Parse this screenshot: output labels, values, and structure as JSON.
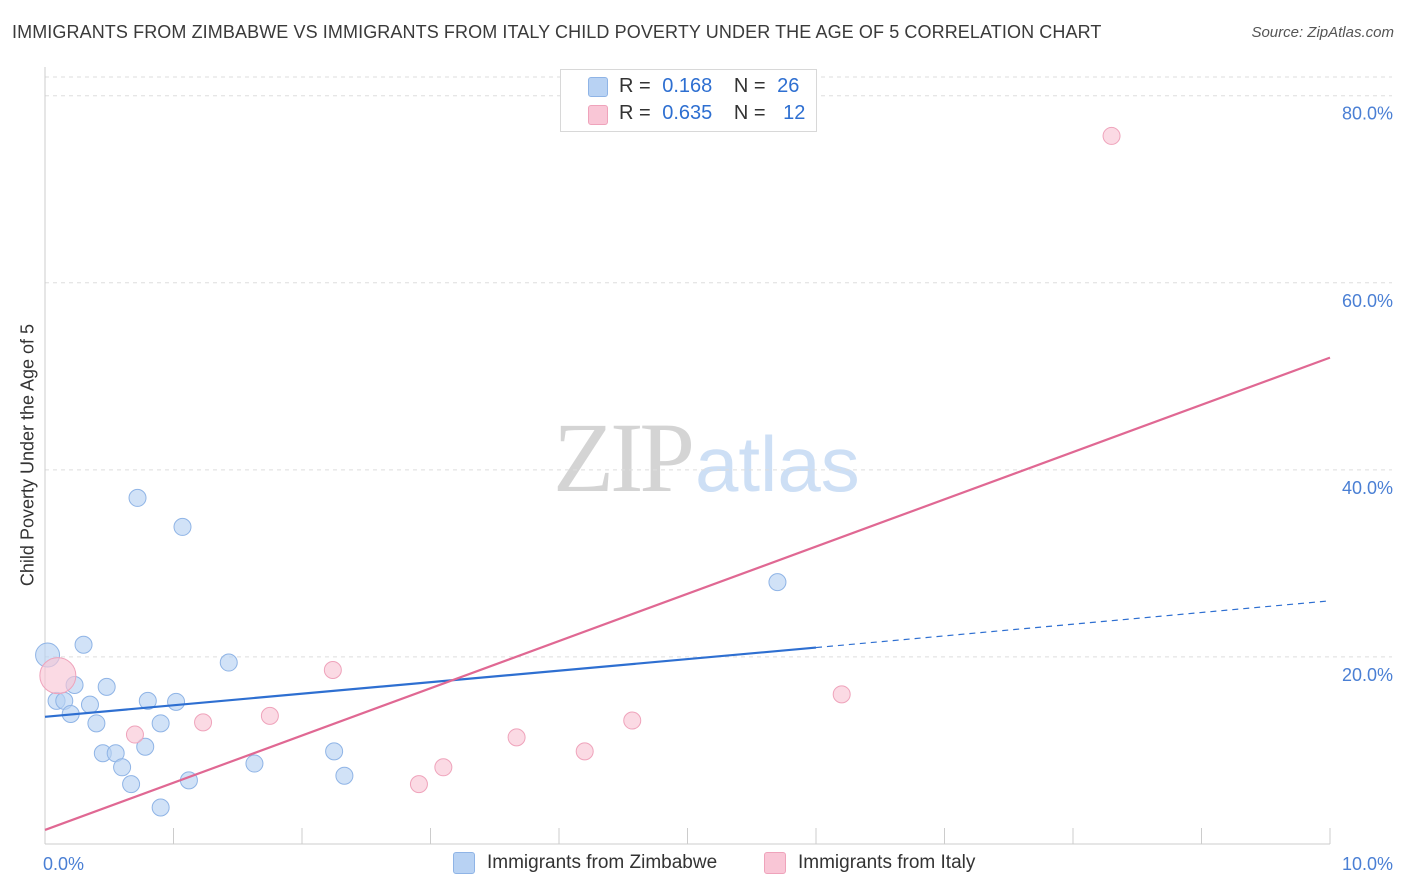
{
  "title": "IMMIGRANTS FROM ZIMBABWE VS IMMIGRANTS FROM ITALY CHILD POVERTY UNDER THE AGE OF 5 CORRELATION CHART",
  "source": "Source: ZipAtlas.com",
  "watermark": {
    "zip": "ZIP",
    "atlas": "atlas"
  },
  "legend": {
    "rows": [
      {
        "r_label": "R =",
        "r_value": "0.168",
        "n_label": "N =",
        "n_value": "26",
        "color": "#b8d2f3"
      },
      {
        "r_label": "R =",
        "r_value": "0.635",
        "n_label": "N =",
        "n_value": "12",
        "color": "#f9c6d6"
      }
    ]
  },
  "chart_data": {
    "type": "scatter",
    "xlabel": "",
    "ylabel": "Child Poverty Under the Age of 5",
    "xlim": [
      0,
      10
    ],
    "ylim": [
      0,
      82
    ],
    "x_tick_labels": [
      {
        "value": 0,
        "label": "0.0%"
      },
      {
        "value": 10,
        "label": "10.0%"
      }
    ],
    "y_tick_labels": [
      {
        "value": 20,
        "label": "20.0%"
      },
      {
        "value": 40,
        "label": "40.0%"
      },
      {
        "value": 60,
        "label": "60.0%"
      },
      {
        "value": 80,
        "label": "80.0%"
      }
    ],
    "x_minor_ticks": [
      1,
      2,
      3,
      4,
      5,
      6,
      7,
      8,
      9,
      10
    ],
    "grid": "horizontal dashed",
    "legend_position": "top-center",
    "series": [
      {
        "name": "Immigrants from Zimbabwe",
        "color": "#b8d2f3",
        "stroke": "#8fb4e6",
        "line_color": "#2e6fd1",
        "points": [
          [
            0.02,
            20.2
          ],
          [
            0.09,
            15.3
          ],
          [
            0.15,
            15.3
          ],
          [
            0.2,
            13.9
          ],
          [
            0.23,
            17.0
          ],
          [
            0.3,
            21.3
          ],
          [
            0.35,
            14.9
          ],
          [
            0.4,
            12.9
          ],
          [
            0.48,
            16.8
          ],
          [
            0.45,
            9.7
          ],
          [
            0.55,
            9.7
          ],
          [
            0.6,
            8.2
          ],
          [
            0.67,
            6.4
          ],
          [
            0.72,
            37.0
          ],
          [
            0.78,
            10.4
          ],
          [
            0.8,
            15.3
          ],
          [
            0.9,
            12.9
          ],
          [
            0.9,
            3.9
          ],
          [
            1.02,
            15.2
          ],
          [
            1.07,
            33.9
          ],
          [
            1.12,
            6.8
          ],
          [
            1.43,
            19.4
          ],
          [
            1.63,
            8.6
          ],
          [
            2.25,
            9.9
          ],
          [
            2.33,
            7.3
          ],
          [
            5.7,
            28.0
          ]
        ],
        "trend": {
          "x0": 0,
          "y0": 13.6,
          "x1": 6.0,
          "y1": 21.0,
          "dash_to_x": 10.0,
          "dash_to_y": 26.0
        }
      },
      {
        "name": "Immigrants from Italy",
        "color": "#f9c6d6",
        "stroke": "#efa3bb",
        "line_color": "#e06893",
        "points": [
          [
            0.1,
            18.0
          ],
          [
            0.7,
            11.7
          ],
          [
            1.23,
            13.0
          ],
          [
            1.75,
            13.7
          ],
          [
            2.24,
            18.6
          ],
          [
            2.91,
            6.4
          ],
          [
            3.1,
            8.2
          ],
          [
            3.67,
            11.4
          ],
          [
            4.2,
            9.9
          ],
          [
            4.57,
            13.2
          ],
          [
            6.2,
            16.0
          ],
          [
            8.3,
            75.7
          ]
        ],
        "trend": {
          "x0": 0,
          "y0": 1.5,
          "x1": 10.0,
          "y1": 52.0
        }
      }
    ]
  }
}
